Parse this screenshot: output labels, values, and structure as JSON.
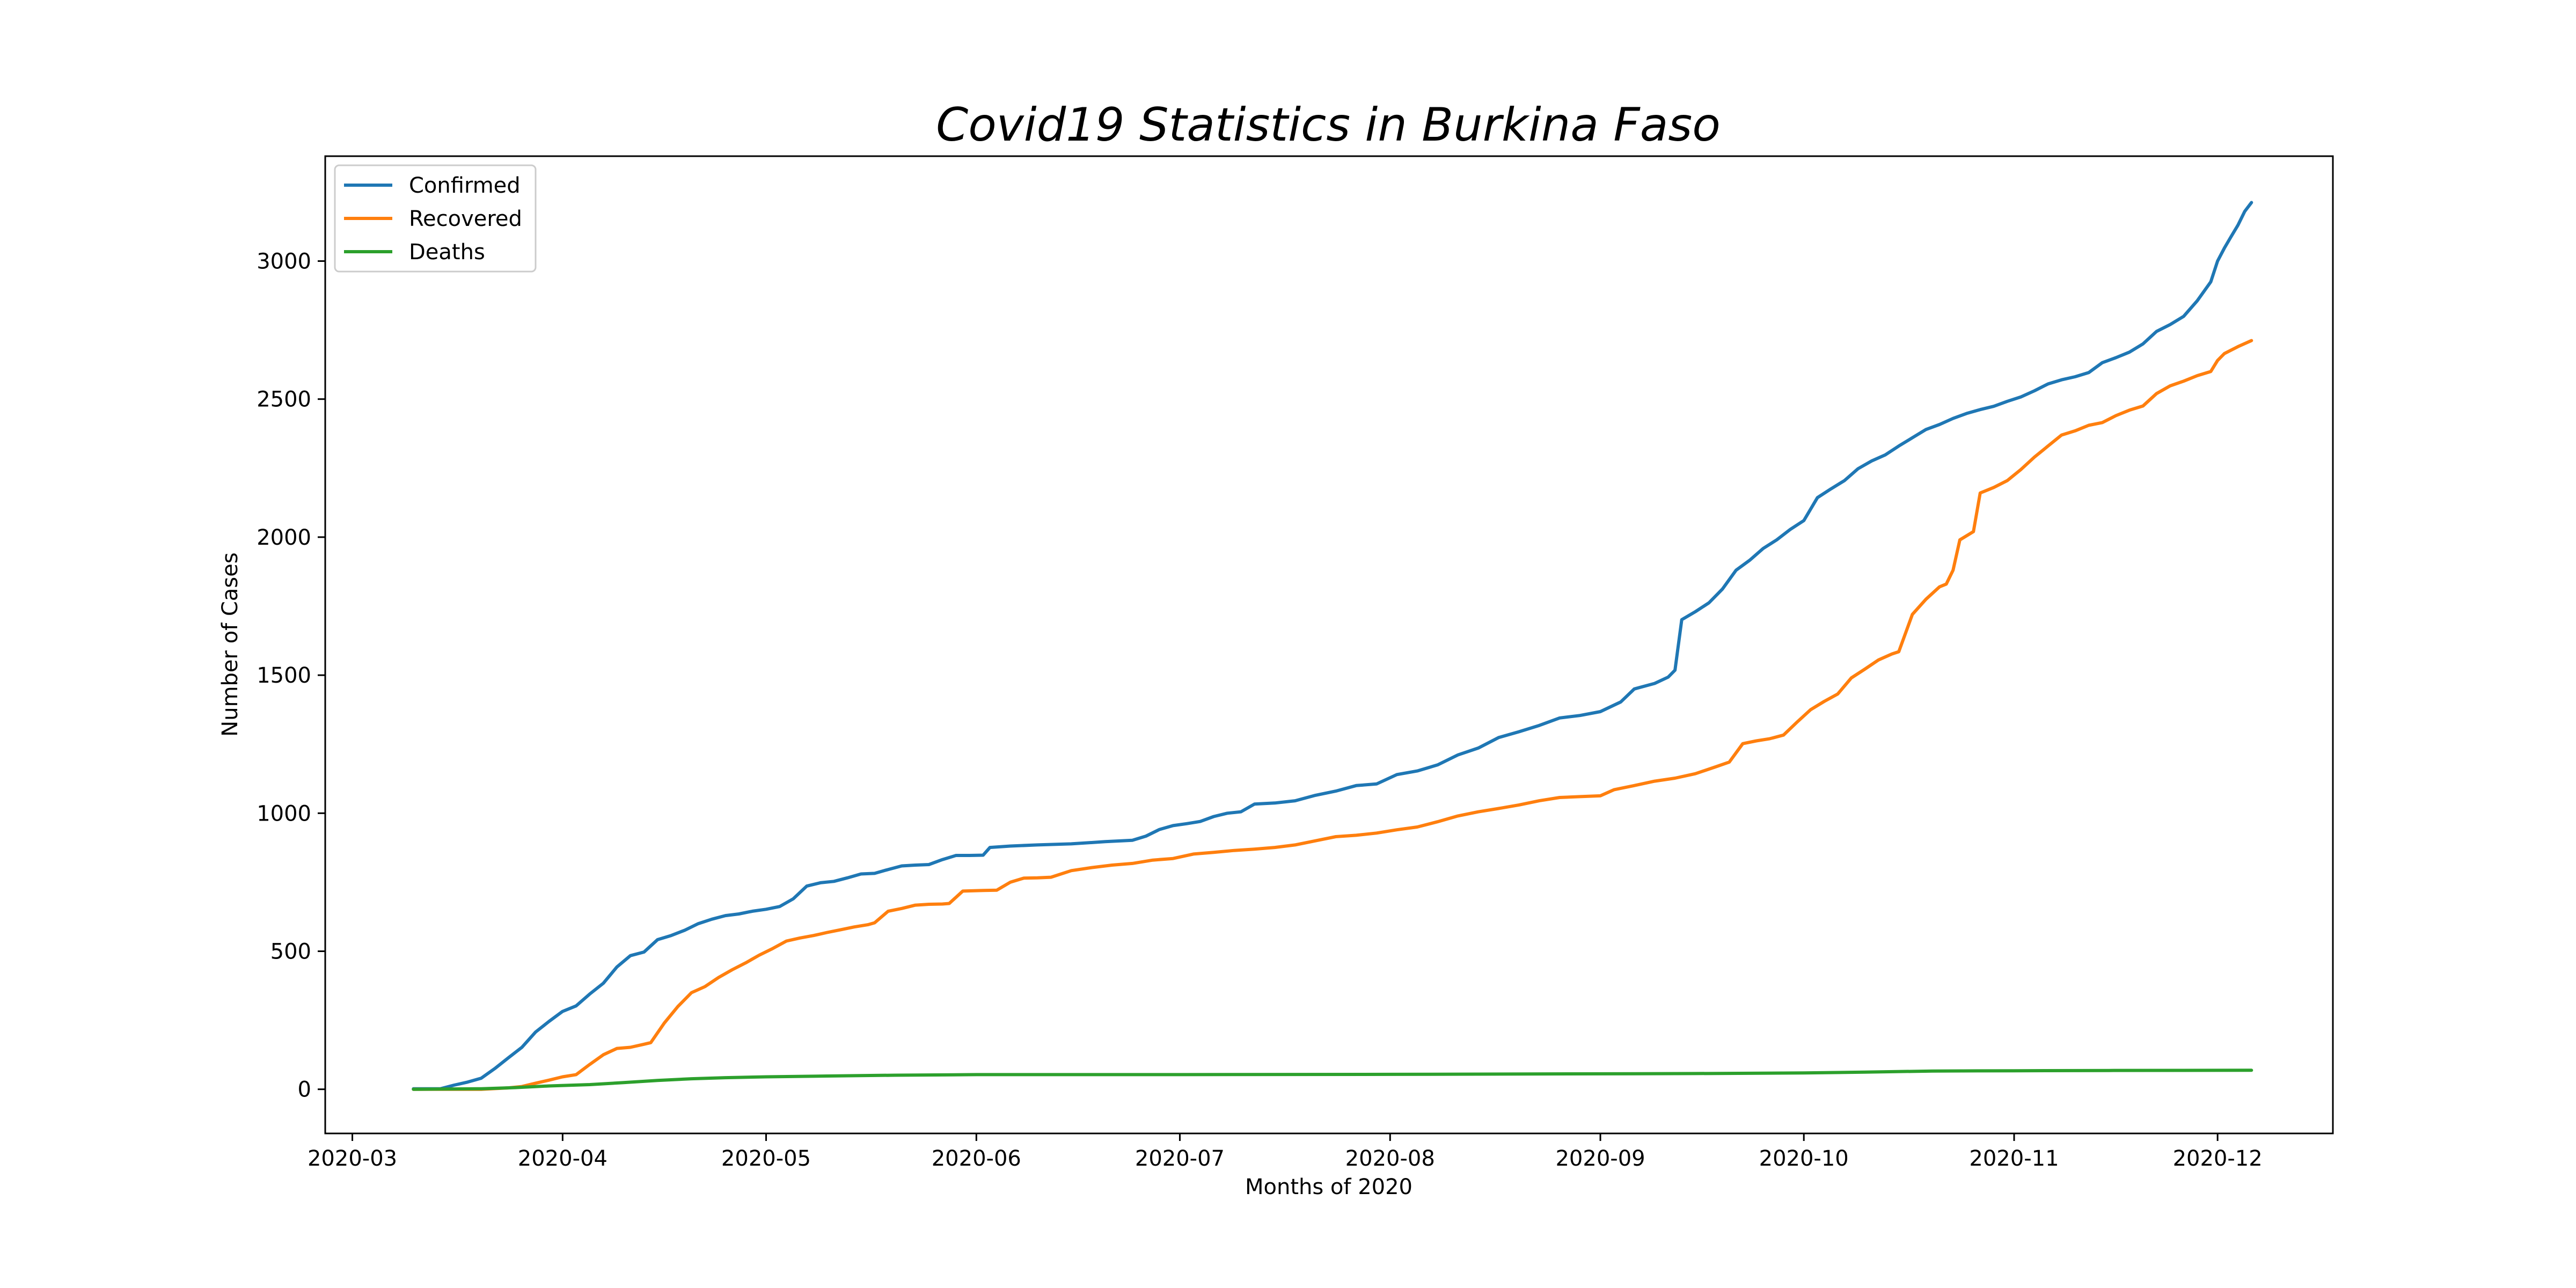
{
  "chart_data": {
    "type": "line",
    "title": "Covid19 Statistics in Burkina Faso",
    "xlabel": "Months of 2020",
    "ylabel": "Number of Cases",
    "x_type": "date",
    "xlim": [
      "2020-02-26",
      "2020-12-18"
    ],
    "ylim": [
      -160,
      3380
    ],
    "x_ticks": [
      {
        "date": "2020-03-01",
        "label": "2020-03"
      },
      {
        "date": "2020-04-01",
        "label": "2020-04"
      },
      {
        "date": "2020-05-01",
        "label": "2020-05"
      },
      {
        "date": "2020-06-01",
        "label": "2020-06"
      },
      {
        "date": "2020-07-01",
        "label": "2020-07"
      },
      {
        "date": "2020-08-01",
        "label": "2020-08"
      },
      {
        "date": "2020-09-01",
        "label": "2020-09"
      },
      {
        "date": "2020-10-01",
        "label": "2020-10"
      },
      {
        "date": "2020-11-01",
        "label": "2020-11"
      },
      {
        "date": "2020-12-01",
        "label": "2020-12"
      }
    ],
    "y_ticks": [
      0,
      500,
      1000,
      1500,
      2000,
      2500,
      3000
    ],
    "y_tick_labels": [
      "0",
      "500",
      "1000",
      "1500",
      "2000",
      "2500",
      "3000"
    ],
    "grid": false,
    "legend_position": "top-left",
    "series": [
      {
        "name": "Confirmed",
        "color": "#1f77b4",
        "points": [
          [
            "2020-03-10",
            2
          ],
          [
            "2020-03-14",
            2
          ],
          [
            "2020-03-16",
            15
          ],
          [
            "2020-03-18",
            26
          ],
          [
            "2020-03-20",
            40
          ],
          [
            "2020-03-22",
            75
          ],
          [
            "2020-03-24",
            114
          ],
          [
            "2020-03-26",
            152
          ],
          [
            "2020-03-28",
            207
          ],
          [
            "2020-03-30",
            246
          ],
          [
            "2020-04-01",
            282
          ],
          [
            "2020-04-03",
            302
          ],
          [
            "2020-04-05",
            345
          ],
          [
            "2020-04-07",
            384
          ],
          [
            "2020-04-09",
            443
          ],
          [
            "2020-04-11",
            484
          ],
          [
            "2020-04-13",
            497
          ],
          [
            "2020-04-15",
            542
          ],
          [
            "2020-04-17",
            557
          ],
          [
            "2020-04-19",
            576
          ],
          [
            "2020-04-21",
            600
          ],
          [
            "2020-04-23",
            616
          ],
          [
            "2020-04-25",
            629
          ],
          [
            "2020-04-27",
            635
          ],
          [
            "2020-04-29",
            645
          ],
          [
            "2020-05-01",
            652
          ],
          [
            "2020-05-03",
            662
          ],
          [
            "2020-05-05",
            690
          ],
          [
            "2020-05-07",
            736
          ],
          [
            "2020-05-09",
            748
          ],
          [
            "2020-05-11",
            753
          ],
          [
            "2020-05-13",
            766
          ],
          [
            "2020-05-15",
            780
          ],
          [
            "2020-05-17",
            782
          ],
          [
            "2020-05-19",
            796
          ],
          [
            "2020-05-21",
            809
          ],
          [
            "2020-05-23",
            812
          ],
          [
            "2020-05-25",
            814
          ],
          [
            "2020-05-27",
            832
          ],
          [
            "2020-05-29",
            847
          ],
          [
            "2020-05-31",
            847
          ],
          [
            "2020-06-02",
            848
          ],
          [
            "2020-06-03",
            876
          ],
          [
            "2020-06-06",
            881
          ],
          [
            "2020-06-10",
            885
          ],
          [
            "2020-06-15",
            889
          ],
          [
            "2020-06-20",
            897
          ],
          [
            "2020-06-24",
            902
          ],
          [
            "2020-06-26",
            917
          ],
          [
            "2020-06-28",
            941
          ],
          [
            "2020-06-30",
            955
          ],
          [
            "2020-07-02",
            962
          ],
          [
            "2020-07-04",
            970
          ],
          [
            "2020-07-06",
            988
          ],
          [
            "2020-07-08",
            1000
          ],
          [
            "2020-07-10",
            1005
          ],
          [
            "2020-07-12",
            1033
          ],
          [
            "2020-07-15",
            1037
          ],
          [
            "2020-07-18",
            1045
          ],
          [
            "2020-07-21",
            1065
          ],
          [
            "2020-07-24",
            1080
          ],
          [
            "2020-07-27",
            1100
          ],
          [
            "2020-07-30",
            1106
          ],
          [
            "2020-08-02",
            1140
          ],
          [
            "2020-08-05",
            1153
          ],
          [
            "2020-08-08",
            1175
          ],
          [
            "2020-08-11",
            1211
          ],
          [
            "2020-08-14",
            1236
          ],
          [
            "2020-08-17",
            1274
          ],
          [
            "2020-08-20",
            1295
          ],
          [
            "2020-08-23",
            1318
          ],
          [
            "2020-08-26",
            1345
          ],
          [
            "2020-08-29",
            1354
          ],
          [
            "2020-09-01",
            1368
          ],
          [
            "2020-09-04",
            1403
          ],
          [
            "2020-09-06",
            1450
          ],
          [
            "2020-09-09",
            1470
          ],
          [
            "2020-09-11",
            1493
          ],
          [
            "2020-09-12",
            1518
          ],
          [
            "2020-09-13",
            1701
          ],
          [
            "2020-09-15",
            1730
          ],
          [
            "2020-09-17",
            1762
          ],
          [
            "2020-09-19",
            1812
          ],
          [
            "2020-09-21",
            1880
          ],
          [
            "2020-09-23",
            1916
          ],
          [
            "2020-09-25",
            1959
          ],
          [
            "2020-09-27",
            1990
          ],
          [
            "2020-09-29",
            2028
          ],
          [
            "2020-10-01",
            2060
          ],
          [
            "2020-10-03",
            2143
          ],
          [
            "2020-10-05",
            2175
          ],
          [
            "2020-10-07",
            2205
          ],
          [
            "2020-10-09",
            2248
          ],
          [
            "2020-10-11",
            2276
          ],
          [
            "2020-10-13",
            2298
          ],
          [
            "2020-10-15",
            2330
          ],
          [
            "2020-10-17",
            2360
          ],
          [
            "2020-10-19",
            2390
          ],
          [
            "2020-10-21",
            2408
          ],
          [
            "2020-10-23",
            2430
          ],
          [
            "2020-10-25",
            2448
          ],
          [
            "2020-10-27",
            2462
          ],
          [
            "2020-10-29",
            2474
          ],
          [
            "2020-10-31",
            2492
          ],
          [
            "2020-11-02",
            2508
          ],
          [
            "2020-11-04",
            2530
          ],
          [
            "2020-11-06",
            2555
          ],
          [
            "2020-11-08",
            2570
          ],
          [
            "2020-11-10",
            2581
          ],
          [
            "2020-11-12",
            2596
          ],
          [
            "2020-11-14",
            2632
          ],
          [
            "2020-11-16",
            2650
          ],
          [
            "2020-11-18",
            2670
          ],
          [
            "2020-11-20",
            2700
          ],
          [
            "2020-11-22",
            2745
          ],
          [
            "2020-11-24",
            2770
          ],
          [
            "2020-11-26",
            2800
          ],
          [
            "2020-11-28",
            2856
          ],
          [
            "2020-11-30",
            2925
          ],
          [
            "2020-12-01",
            3000
          ],
          [
            "2020-12-02",
            3047
          ],
          [
            "2020-12-03",
            3089
          ],
          [
            "2020-12-04",
            3130
          ],
          [
            "2020-12-05",
            3180
          ],
          [
            "2020-12-06",
            3212
          ]
        ]
      },
      {
        "name": "Recovered",
        "color": "#ff7f0e",
        "points": [
          [
            "2020-03-10",
            0
          ],
          [
            "2020-03-20",
            0
          ],
          [
            "2020-03-24",
            5
          ],
          [
            "2020-03-26",
            10
          ],
          [
            "2020-03-28",
            22
          ],
          [
            "2020-03-30",
            33
          ],
          [
            "2020-04-01",
            45
          ],
          [
            "2020-04-03",
            53
          ],
          [
            "2020-04-05",
            90
          ],
          [
            "2020-04-07",
            125
          ],
          [
            "2020-04-09",
            148
          ],
          [
            "2020-04-11",
            152
          ],
          [
            "2020-04-13",
            163
          ],
          [
            "2020-04-14",
            169
          ],
          [
            "2020-04-16",
            240
          ],
          [
            "2020-04-18",
            300
          ],
          [
            "2020-04-20",
            350
          ],
          [
            "2020-04-22",
            372
          ],
          [
            "2020-04-24",
            405
          ],
          [
            "2020-04-26",
            433
          ],
          [
            "2020-04-28",
            458
          ],
          [
            "2020-04-30",
            486
          ],
          [
            "2020-05-02",
            510
          ],
          [
            "2020-05-04",
            537
          ],
          [
            "2020-05-06",
            548
          ],
          [
            "2020-05-08",
            557
          ],
          [
            "2020-05-10",
            568
          ],
          [
            "2020-05-12",
            578
          ],
          [
            "2020-05-14",
            588
          ],
          [
            "2020-05-16",
            596
          ],
          [
            "2020-05-17",
            603
          ],
          [
            "2020-05-19",
            645
          ],
          [
            "2020-05-21",
            655
          ],
          [
            "2020-05-23",
            667
          ],
          [
            "2020-05-25",
            670
          ],
          [
            "2020-05-27",
            671
          ],
          [
            "2020-05-28",
            673
          ],
          [
            "2020-05-30",
            718
          ],
          [
            "2020-06-02",
            720
          ],
          [
            "2020-06-04",
            721
          ],
          [
            "2020-06-06",
            750
          ],
          [
            "2020-06-08",
            765
          ],
          [
            "2020-06-10",
            766
          ],
          [
            "2020-06-12",
            768
          ],
          [
            "2020-06-15",
            792
          ],
          [
            "2020-06-18",
            803
          ],
          [
            "2020-06-21",
            812
          ],
          [
            "2020-06-24",
            818
          ],
          [
            "2020-06-27",
            830
          ],
          [
            "2020-06-30",
            836
          ],
          [
            "2020-07-03",
            852
          ],
          [
            "2020-07-06",
            858
          ],
          [
            "2020-07-09",
            865
          ],
          [
            "2020-07-12",
            870
          ],
          [
            "2020-07-15",
            876
          ],
          [
            "2020-07-18",
            885
          ],
          [
            "2020-07-21",
            900
          ],
          [
            "2020-07-24",
            915
          ],
          [
            "2020-07-27",
            920
          ],
          [
            "2020-07-30",
            928
          ],
          [
            "2020-08-02",
            940
          ],
          [
            "2020-08-05",
            950
          ],
          [
            "2020-08-08",
            969
          ],
          [
            "2020-08-11",
            990
          ],
          [
            "2020-08-14",
            1005
          ],
          [
            "2020-08-17",
            1017
          ],
          [
            "2020-08-20",
            1030
          ],
          [
            "2020-08-23",
            1045
          ],
          [
            "2020-08-26",
            1057
          ],
          [
            "2020-08-29",
            1060
          ],
          [
            "2020-09-01",
            1063
          ],
          [
            "2020-09-03",
            1085
          ],
          [
            "2020-09-06",
            1100
          ],
          [
            "2020-09-09",
            1116
          ],
          [
            "2020-09-12",
            1127
          ],
          [
            "2020-09-15",
            1143
          ],
          [
            "2020-09-18",
            1168
          ],
          [
            "2020-09-20",
            1185
          ],
          [
            "2020-09-22",
            1252
          ],
          [
            "2020-09-24",
            1262
          ],
          [
            "2020-09-26",
            1270
          ],
          [
            "2020-09-28",
            1283
          ],
          [
            "2020-09-30",
            1330
          ],
          [
            "2020-10-02",
            1375
          ],
          [
            "2020-10-04",
            1405
          ],
          [
            "2020-10-06",
            1432
          ],
          [
            "2020-10-08",
            1490
          ],
          [
            "2020-10-10",
            1522
          ],
          [
            "2020-10-12",
            1555
          ],
          [
            "2020-10-14",
            1577
          ],
          [
            "2020-10-15",
            1585
          ],
          [
            "2020-10-17",
            1720
          ],
          [
            "2020-10-19",
            1775
          ],
          [
            "2020-10-21",
            1820
          ],
          [
            "2020-10-22",
            1830
          ],
          [
            "2020-10-23",
            1880
          ],
          [
            "2020-10-24",
            1990
          ],
          [
            "2020-10-26",
            2020
          ],
          [
            "2020-10-27",
            2160
          ],
          [
            "2020-10-29",
            2180
          ],
          [
            "2020-10-31",
            2205
          ],
          [
            "2020-11-02",
            2245
          ],
          [
            "2020-11-04",
            2290
          ],
          [
            "2020-11-06",
            2330
          ],
          [
            "2020-11-08",
            2370
          ],
          [
            "2020-11-10",
            2385
          ],
          [
            "2020-11-12",
            2405
          ],
          [
            "2020-11-14",
            2415
          ],
          [
            "2020-11-16",
            2440
          ],
          [
            "2020-11-18",
            2460
          ],
          [
            "2020-11-20",
            2475
          ],
          [
            "2020-11-22",
            2520
          ],
          [
            "2020-11-24",
            2548
          ],
          [
            "2020-11-26",
            2565
          ],
          [
            "2020-11-28",
            2585
          ],
          [
            "2020-11-30",
            2600
          ],
          [
            "2020-12-01",
            2640
          ],
          [
            "2020-12-02",
            2665
          ],
          [
            "2020-12-04",
            2690
          ],
          [
            "2020-12-06",
            2712
          ]
        ]
      },
      {
        "name": "Deaths",
        "color": "#2ca02c",
        "points": [
          [
            "2020-03-10",
            0
          ],
          [
            "2020-03-20",
            2
          ],
          [
            "2020-03-25",
            6
          ],
          [
            "2020-03-30",
            12
          ],
          [
            "2020-04-05",
            17
          ],
          [
            "2020-04-10",
            24
          ],
          [
            "2020-04-15",
            32
          ],
          [
            "2020-04-20",
            38
          ],
          [
            "2020-04-25",
            42
          ],
          [
            "2020-05-01",
            45
          ],
          [
            "2020-05-10",
            48
          ],
          [
            "2020-05-20",
            51
          ],
          [
            "2020-06-01",
            53
          ],
          [
            "2020-07-01",
            53
          ],
          [
            "2020-08-01",
            54
          ],
          [
            "2020-09-01",
            56
          ],
          [
            "2020-09-15",
            57
          ],
          [
            "2020-10-01",
            59
          ],
          [
            "2020-10-10",
            62
          ],
          [
            "2020-10-20",
            66
          ],
          [
            "2020-11-01",
            67
          ],
          [
            "2020-11-15",
            68
          ],
          [
            "2020-12-06",
            69
          ]
        ]
      }
    ]
  }
}
